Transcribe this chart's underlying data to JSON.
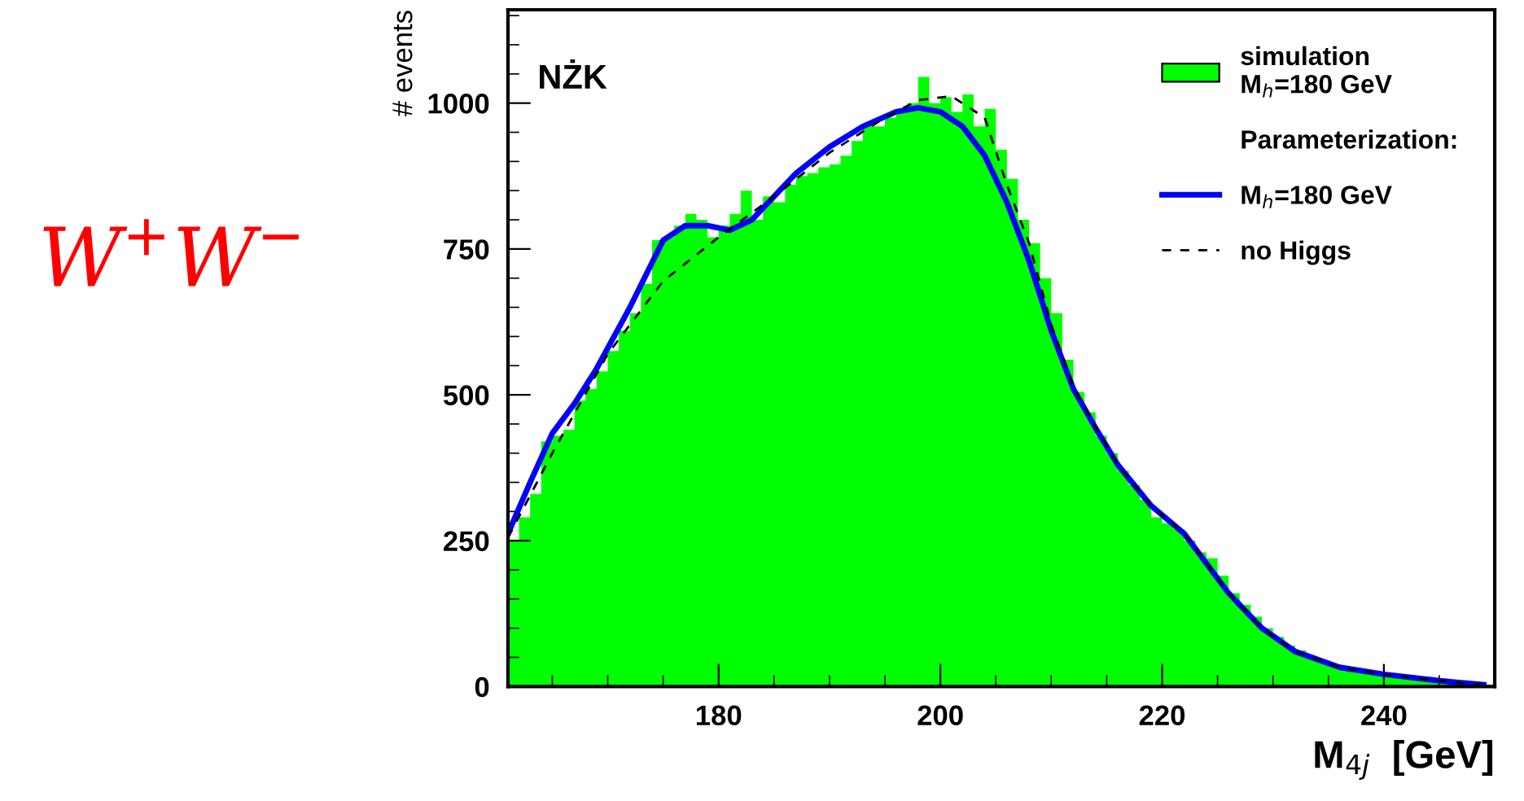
{
  "chart_data": {
    "type": "histogram",
    "xlabel": "M$_{4j}$  [GeV]",
    "ylabel": "# events",
    "legend_title": "Parameterization:",
    "annotations": [
      "NŻK",
      "W$^{+}$W$^{−}$"
    ],
    "xlim": [
      161,
      250
    ],
    "ylim": [
      0,
      1160
    ],
    "xticks": [
      180,
      200,
      220,
      240
    ],
    "yticks": [
      0,
      250,
      500,
      750,
      1000
    ],
    "grid": false,
    "legend": "top right",
    "series": [
      {
        "name": "simulation\nM$_{h}$=180 GeV",
        "color": "#00ff00",
        "bins": [
          161,
          162,
          163,
          164,
          165,
          166,
          167,
          168,
          169,
          170,
          171,
          172,
          173,
          174,
          175,
          176,
          177,
          178,
          179,
          180,
          181,
          182,
          183,
          184,
          185,
          186,
          187,
          188,
          189,
          190,
          191,
          192,
          193,
          194,
          195,
          196,
          197,
          198,
          199,
          200,
          201,
          202,
          203,
          204,
          205,
          206,
          207,
          208,
          209,
          210,
          211,
          212,
          213,
          214,
          215,
          216,
          217,
          218,
          219,
          220,
          221,
          222,
          223,
          224,
          225,
          226,
          227,
          228,
          229,
          230,
          231,
          232,
          233,
          234,
          235,
          236,
          237,
          238,
          239,
          240,
          241,
          242,
          243,
          244,
          245,
          246,
          247,
          248,
          249,
          250
        ],
        "values": [
          250,
          290,
          330,
          420,
          430,
          440,
          490,
          510,
          540,
          575,
          610,
          640,
          690,
          765,
          770,
          790,
          810,
          800,
          770,
          790,
          810,
          850,
          800,
          840,
          830,
          860,
          875,
          880,
          890,
          895,
          910,
          935,
          965,
          960,
          975,
          990,
          1000,
          1045,
          1000,
          1010,
          985,
          1015,
          960,
          990,
          920,
          870,
          800,
          760,
          700,
          640,
          560,
          505,
          470,
          430,
          400,
          370,
          345,
          320,
          290,
          280,
          270,
          250,
          230,
          220,
          190,
          160,
          140,
          120,
          100,
          85,
          70,
          62,
          50,
          42,
          35,
          32,
          28,
          25,
          22,
          20,
          18,
          16,
          14,
          12,
          10,
          8,
          6,
          5,
          3
        ]
      },
      {
        "type": "line",
        "name": "M$_{h}$=180 GeV",
        "color": "#0000ff",
        "line_style": "solid",
        "x": [
          161,
          163,
          165,
          167,
          169,
          172,
          175,
          177,
          179,
          181,
          183,
          185,
          187,
          190,
          193,
          196,
          198,
          200,
          202,
          204,
          206,
          208,
          210,
          212,
          214,
          216,
          219,
          222,
          226,
          229,
          232,
          236,
          240,
          245,
          249
        ],
        "values": [
          262,
          350,
          434,
          485,
          545,
          650,
          765,
          790,
          790,
          782,
          800,
          840,
          880,
          925,
          960,
          985,
          992,
          985,
          960,
          910,
          830,
          730,
          610,
          510,
          443,
          380,
          310,
          262,
          160,
          100,
          60,
          33,
          21,
          10,
          3
        ]
      },
      {
        "type": "line",
        "name": "no Higgs",
        "color": "#000000",
        "line_style": "dashed",
        "x": [
          161,
          165,
          170,
          175,
          180,
          185,
          190,
          195,
          198,
          201,
          204,
          206,
          208,
          210,
          212,
          214,
          216,
          219,
          222,
          226,
          229,
          232,
          236,
          240,
          245,
          249
        ],
        "values": [
          255,
          400,
          570,
          695,
          770,
          840,
          915,
          975,
          1005,
          1012,
          975,
          860,
          760,
          620,
          515,
          445,
          380,
          310,
          262,
          160,
          100,
          60,
          33,
          21,
          10,
          3
        ]
      }
    ]
  }
}
